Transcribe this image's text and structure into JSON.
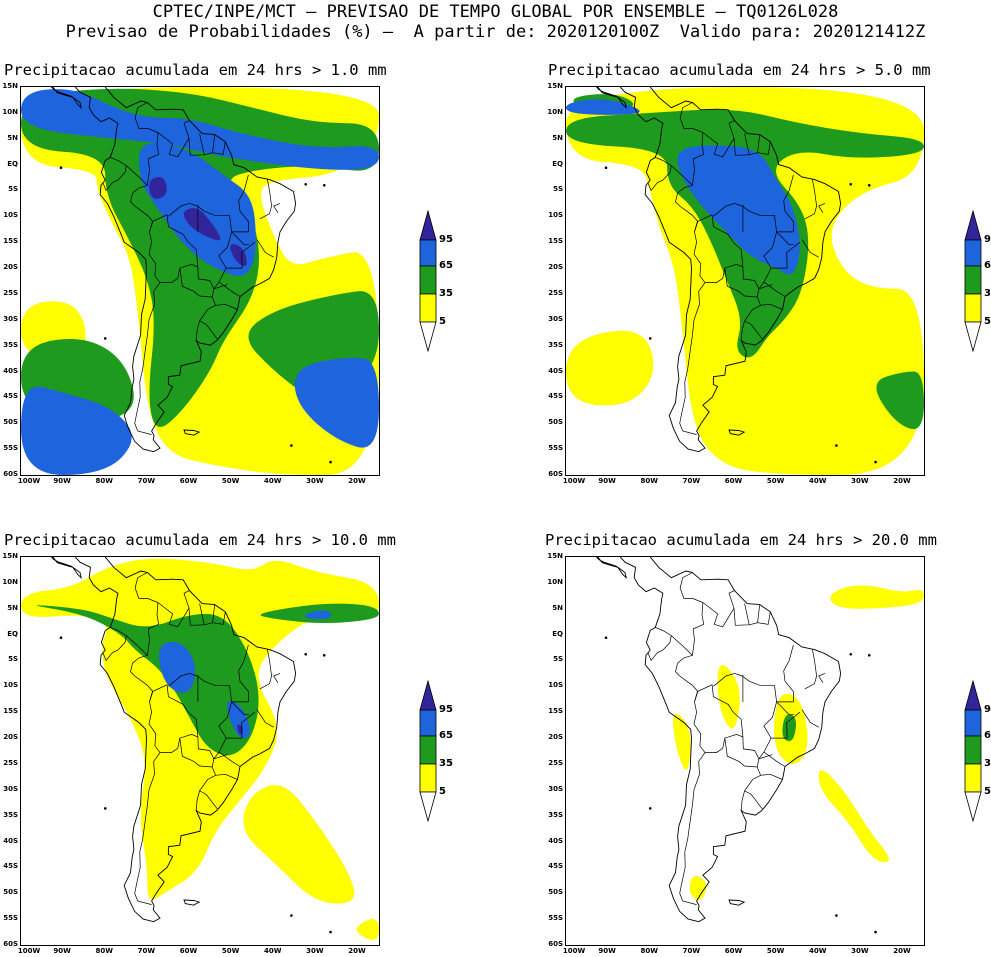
{
  "header": {
    "line1": "CPTEC/INPE/MCT – PREVISAO DE TEMPO GLOBAL POR ENSEMBLE – TQ0126L028",
    "line2": "Previsao de Probabilidades (%) –  A partir de: 2020120100Z  Valido para: 2020121412Z"
  },
  "colors": {
    "yellow": "#ffff00",
    "green": "#1e9a1e",
    "blue": "#1e64dc",
    "darkblue": "#32259b",
    "coast": "#000000"
  },
  "axes": {
    "lat_labels": [
      "15N",
      "10N",
      "5N",
      "EQ",
      "5S",
      "10S",
      "15S",
      "20S",
      "25S",
      "30S",
      "35S",
      "40S",
      "45S",
      "50S",
      "55S",
      "60S"
    ],
    "lon_labels": [
      "100W",
      "90W",
      "80W",
      "70W",
      "60W",
      "50W",
      "40W",
      "30W",
      "20W"
    ]
  },
  "legend": {
    "levels": [
      "95",
      "65",
      "35",
      "5"
    ]
  },
  "panels": [
    {
      "id": "p1",
      "title": "Precipitacao acumulada em 24 hrs > 1.0 mm",
      "threshold_mm": 1.0,
      "coverage": "high"
    },
    {
      "id": "p2",
      "title": "Precipitacao acumulada em 24 hrs > 5.0 mm",
      "threshold_mm": 5.0,
      "coverage": "medium"
    },
    {
      "id": "p3",
      "title": "Precipitacao acumulada em 24 hrs > 10.0 mm",
      "threshold_mm": 10.0,
      "coverage": "low"
    },
    {
      "id": "p4",
      "title": "Precipitacao acumulada em 24 hrs > 20.0 mm",
      "threshold_mm": 20.0,
      "coverage": "minimal"
    }
  ]
}
